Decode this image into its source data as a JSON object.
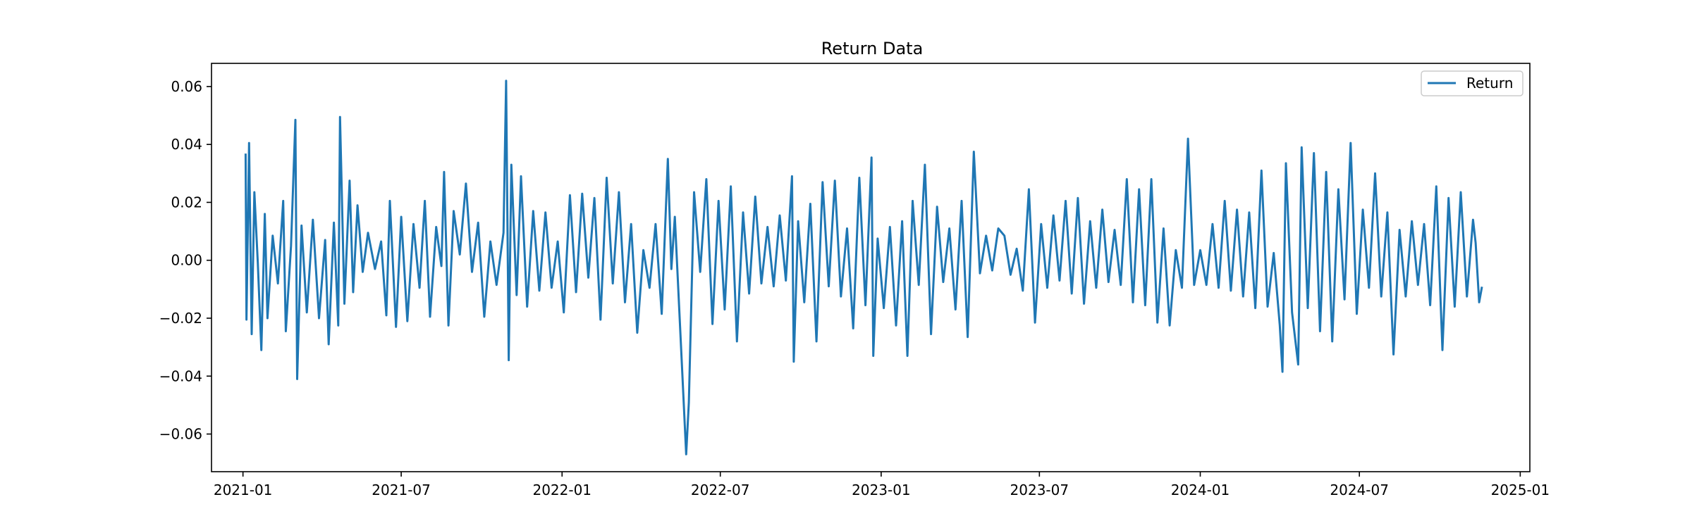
{
  "chart_data": {
    "type": "line",
    "title": "Return Data",
    "xlabel": "",
    "ylabel": "",
    "x_range": [
      "2020-11-26",
      "2025-01-12"
    ],
    "y_range": [
      -0.073,
      0.068
    ],
    "x_ticks": [
      "2021-01",
      "2021-07",
      "2022-01",
      "2022-07",
      "2023-01",
      "2023-07",
      "2024-01",
      "2024-07",
      "2025-01"
    ],
    "x_tick_dates": [
      "2021-01-01",
      "2021-07-01",
      "2022-01-01",
      "2022-07-01",
      "2023-01-01",
      "2023-07-01",
      "2024-01-01",
      "2024-07-01",
      "2025-01-01"
    ],
    "y_ticks": [
      -0.06,
      -0.04,
      -0.02,
      0.0,
      0.02,
      0.04,
      0.06
    ],
    "y_tick_labels": [
      "−0.06",
      "−0.04",
      "−0.02",
      "0.00",
      "0.02",
      "0.04",
      "0.06"
    ],
    "grid": false,
    "legend": {
      "position": "top-right",
      "entries": [
        "Return"
      ]
    },
    "colors": {
      "series": "#1f77b4",
      "axes": "#000000",
      "legend_border": "#cccccc"
    },
    "series": [
      {
        "name": "Return",
        "points": [
          [
            "2021-01-04",
            0.0365
          ],
          [
            "2021-01-05",
            -0.0205
          ],
          [
            "2021-01-08",
            0.0405
          ],
          [
            "2021-01-11",
            -0.0255
          ],
          [
            "2021-01-14",
            0.0235
          ],
          [
            "2021-01-18",
            -0.001
          ],
          [
            "2021-01-22",
            -0.031
          ],
          [
            "2021-01-26",
            0.016
          ],
          [
            "2021-01-29",
            -0.02
          ],
          [
            "2021-02-04",
            0.0085
          ],
          [
            "2021-02-10",
            -0.008
          ],
          [
            "2021-02-16",
            0.0205
          ],
          [
            "2021-02-19",
            -0.0245
          ],
          [
            "2021-02-25",
            0.005
          ],
          [
            "2021-03-02",
            0.0485
          ],
          [
            "2021-03-04",
            -0.041
          ],
          [
            "2021-03-09",
            0.012
          ],
          [
            "2021-03-15",
            -0.018
          ],
          [
            "2021-03-22",
            0.014
          ],
          [
            "2021-03-29",
            -0.02
          ],
          [
            "2021-04-05",
            0.007
          ],
          [
            "2021-04-09",
            -0.029
          ],
          [
            "2021-04-15",
            0.013
          ],
          [
            "2021-04-20",
            -0.0225
          ],
          [
            "2021-04-22",
            0.0495
          ],
          [
            "2021-04-27",
            -0.015
          ],
          [
            "2021-05-03",
            0.0275
          ],
          [
            "2021-05-07",
            -0.011
          ],
          [
            "2021-05-12",
            0.019
          ],
          [
            "2021-05-18",
            -0.004
          ],
          [
            "2021-05-24",
            0.0095
          ],
          [
            "2021-06-01",
            -0.003
          ],
          [
            "2021-06-08",
            0.0065
          ],
          [
            "2021-06-14",
            -0.019
          ],
          [
            "2021-06-18",
            0.0205
          ],
          [
            "2021-06-25",
            -0.023
          ],
          [
            "2021-07-01",
            0.015
          ],
          [
            "2021-07-08",
            -0.021
          ],
          [
            "2021-07-15",
            0.0125
          ],
          [
            "2021-07-22",
            -0.0095
          ],
          [
            "2021-07-28",
            0.0205
          ],
          [
            "2021-08-03",
            -0.0195
          ],
          [
            "2021-08-10",
            0.0115
          ],
          [
            "2021-08-16",
            -0.002
          ],
          [
            "2021-08-19",
            0.0305
          ],
          [
            "2021-08-24",
            -0.0225
          ],
          [
            "2021-08-30",
            0.017
          ],
          [
            "2021-09-06",
            0.002
          ],
          [
            "2021-09-13",
            0.0265
          ],
          [
            "2021-09-20",
            -0.004
          ],
          [
            "2021-09-27",
            0.013
          ],
          [
            "2021-10-04",
            -0.0195
          ],
          [
            "2021-10-11",
            0.0065
          ],
          [
            "2021-10-18",
            -0.0085
          ],
          [
            "2021-10-26",
            0.0095
          ],
          [
            "2021-10-29",
            0.062
          ],
          [
            "2021-11-01",
            -0.0345
          ],
          [
            "2021-11-04",
            0.033
          ],
          [
            "2021-11-10",
            -0.012
          ],
          [
            "2021-11-15",
            0.029
          ],
          [
            "2021-11-22",
            -0.016
          ],
          [
            "2021-11-29",
            0.017
          ],
          [
            "2021-12-06",
            -0.0105
          ],
          [
            "2021-12-13",
            0.0165
          ],
          [
            "2021-12-20",
            -0.0095
          ],
          [
            "2021-12-27",
            0.0065
          ],
          [
            "2022-01-03",
            -0.018
          ],
          [
            "2022-01-10",
            0.0225
          ],
          [
            "2022-01-17",
            -0.011
          ],
          [
            "2022-01-24",
            0.023
          ],
          [
            "2022-01-31",
            -0.006
          ],
          [
            "2022-02-07",
            0.0215
          ],
          [
            "2022-02-14",
            -0.0205
          ],
          [
            "2022-02-21",
            0.0285
          ],
          [
            "2022-02-28",
            -0.008
          ],
          [
            "2022-03-07",
            0.0235
          ],
          [
            "2022-03-14",
            -0.0145
          ],
          [
            "2022-03-21",
            0.0125
          ],
          [
            "2022-03-28",
            -0.025
          ],
          [
            "2022-04-04",
            0.0035
          ],
          [
            "2022-04-11",
            -0.0095
          ],
          [
            "2022-04-18",
            0.0125
          ],
          [
            "2022-04-25",
            -0.0185
          ],
          [
            "2022-05-02",
            0.035
          ],
          [
            "2022-05-06",
            -0.003
          ],
          [
            "2022-05-10",
            0.015
          ],
          [
            "2022-05-23",
            -0.067
          ],
          [
            "2022-05-26",
            -0.049
          ],
          [
            "2022-06-01",
            0.0235
          ],
          [
            "2022-06-08",
            -0.004
          ],
          [
            "2022-06-15",
            0.028
          ],
          [
            "2022-06-22",
            -0.022
          ],
          [
            "2022-06-29",
            0.0205
          ],
          [
            "2022-07-06",
            -0.017
          ],
          [
            "2022-07-13",
            0.0255
          ],
          [
            "2022-07-20",
            -0.028
          ],
          [
            "2022-07-27",
            0.0165
          ],
          [
            "2022-08-03",
            -0.0115
          ],
          [
            "2022-08-10",
            0.022
          ],
          [
            "2022-08-17",
            -0.008
          ],
          [
            "2022-08-24",
            0.0115
          ],
          [
            "2022-08-31",
            -0.009
          ],
          [
            "2022-09-07",
            0.0155
          ],
          [
            "2022-09-14",
            -0.007
          ],
          [
            "2022-09-21",
            0.029
          ],
          [
            "2022-09-23",
            -0.035
          ],
          [
            "2022-09-28",
            0.0135
          ],
          [
            "2022-10-05",
            -0.0145
          ],
          [
            "2022-10-12",
            0.0195
          ],
          [
            "2022-10-19",
            -0.028
          ],
          [
            "2022-10-26",
            0.027
          ],
          [
            "2022-11-02",
            -0.009
          ],
          [
            "2022-11-09",
            0.0275
          ],
          [
            "2022-11-16",
            -0.0125
          ],
          [
            "2022-11-23",
            0.011
          ],
          [
            "2022-11-30",
            -0.0235
          ],
          [
            "2022-12-07",
            0.0285
          ],
          [
            "2022-12-14",
            -0.0155
          ],
          [
            "2022-12-21",
            0.0355
          ],
          [
            "2022-12-23",
            -0.033
          ],
          [
            "2022-12-28",
            0.0075
          ],
          [
            "2023-01-04",
            -0.0165
          ],
          [
            "2023-01-11",
            0.0115
          ],
          [
            "2023-01-18",
            -0.0225
          ],
          [
            "2023-01-25",
            0.0135
          ],
          [
            "2023-01-31",
            -0.033
          ],
          [
            "2023-02-06",
            0.0205
          ],
          [
            "2023-02-13",
            -0.0085
          ],
          [
            "2023-02-20",
            0.033
          ],
          [
            "2023-02-27",
            -0.0255
          ],
          [
            "2023-03-06",
            0.0185
          ],
          [
            "2023-03-13",
            -0.0075
          ],
          [
            "2023-03-20",
            0.011
          ],
          [
            "2023-03-27",
            -0.017
          ],
          [
            "2023-04-03",
            0.0205
          ],
          [
            "2023-04-10",
            -0.0265
          ],
          [
            "2023-04-17",
            0.0375
          ],
          [
            "2023-04-24",
            -0.0045
          ],
          [
            "2023-05-01",
            0.0085
          ],
          [
            "2023-05-08",
            -0.0035
          ],
          [
            "2023-05-15",
            0.011
          ],
          [
            "2023-05-22",
            0.0085
          ],
          [
            "2023-05-29",
            -0.005
          ],
          [
            "2023-06-05",
            0.004
          ],
          [
            "2023-06-12",
            -0.0105
          ],
          [
            "2023-06-19",
            0.0245
          ],
          [
            "2023-06-26",
            -0.0215
          ],
          [
            "2023-07-03",
            0.0125
          ],
          [
            "2023-07-10",
            -0.0095
          ],
          [
            "2023-07-17",
            0.0155
          ],
          [
            "2023-07-24",
            -0.007
          ],
          [
            "2023-07-31",
            0.0205
          ],
          [
            "2023-08-07",
            -0.0115
          ],
          [
            "2023-08-14",
            0.0215
          ],
          [
            "2023-08-21",
            -0.015
          ],
          [
            "2023-08-28",
            0.0135
          ],
          [
            "2023-09-04",
            -0.0095
          ],
          [
            "2023-09-11",
            0.0175
          ],
          [
            "2023-09-18",
            -0.0075
          ],
          [
            "2023-09-25",
            0.0105
          ],
          [
            "2023-10-02",
            -0.0085
          ],
          [
            "2023-10-09",
            0.028
          ],
          [
            "2023-10-16",
            -0.0145
          ],
          [
            "2023-10-23",
            0.0245
          ],
          [
            "2023-10-30",
            -0.0155
          ],
          [
            "2023-11-06",
            0.028
          ],
          [
            "2023-11-13",
            -0.0215
          ],
          [
            "2023-11-20",
            0.011
          ],
          [
            "2023-11-27",
            -0.0225
          ],
          [
            "2023-12-04",
            0.0035
          ],
          [
            "2023-12-11",
            -0.0095
          ],
          [
            "2023-12-18",
            0.042
          ],
          [
            "2023-12-25",
            -0.0085
          ],
          [
            "2024-01-01",
            0.0035
          ],
          [
            "2024-01-08",
            -0.0085
          ],
          [
            "2024-01-15",
            0.0125
          ],
          [
            "2024-01-22",
            -0.0095
          ],
          [
            "2024-01-29",
            0.0205
          ],
          [
            "2024-02-05",
            -0.0105
          ],
          [
            "2024-02-12",
            0.0175
          ],
          [
            "2024-02-19",
            -0.0125
          ],
          [
            "2024-02-26",
            0.0165
          ],
          [
            "2024-03-04",
            -0.0165
          ],
          [
            "2024-03-11",
            0.031
          ],
          [
            "2024-03-18",
            -0.016
          ],
          [
            "2024-03-25",
            0.0025
          ],
          [
            "2024-04-01",
            -0.0225
          ],
          [
            "2024-04-04",
            -0.0385
          ],
          [
            "2024-04-08",
            0.0335
          ],
          [
            "2024-04-15",
            -0.018
          ],
          [
            "2024-04-22",
            -0.036
          ],
          [
            "2024-04-26",
            0.039
          ],
          [
            "2024-05-03",
            -0.0165
          ],
          [
            "2024-05-10",
            0.037
          ],
          [
            "2024-05-17",
            -0.0245
          ],
          [
            "2024-05-24",
            0.0305
          ],
          [
            "2024-05-31",
            -0.028
          ],
          [
            "2024-06-07",
            0.0245
          ],
          [
            "2024-06-14",
            -0.0135
          ],
          [
            "2024-06-21",
            0.0405
          ],
          [
            "2024-06-28",
            -0.0185
          ],
          [
            "2024-07-05",
            0.0175
          ],
          [
            "2024-07-12",
            -0.0095
          ],
          [
            "2024-07-19",
            0.03
          ],
          [
            "2024-07-26",
            -0.0125
          ],
          [
            "2024-08-02",
            0.0165
          ],
          [
            "2024-08-09",
            -0.0325
          ],
          [
            "2024-08-16",
            0.0105
          ],
          [
            "2024-08-23",
            -0.0125
          ],
          [
            "2024-08-30",
            0.0135
          ],
          [
            "2024-09-06",
            -0.0085
          ],
          [
            "2024-09-13",
            0.0125
          ],
          [
            "2024-09-20",
            -0.0155
          ],
          [
            "2024-09-27",
            0.0255
          ],
          [
            "2024-10-04",
            -0.031
          ],
          [
            "2024-10-11",
            0.0215
          ],
          [
            "2024-10-18",
            -0.016
          ],
          [
            "2024-10-25",
            0.0235
          ],
          [
            "2024-11-01",
            -0.0125
          ],
          [
            "2024-11-08",
            0.014
          ],
          [
            "2024-11-11",
            0.006
          ],
          [
            "2024-11-15",
            -0.0145
          ],
          [
            "2024-11-18",
            -0.0095
          ]
        ]
      }
    ]
  }
}
